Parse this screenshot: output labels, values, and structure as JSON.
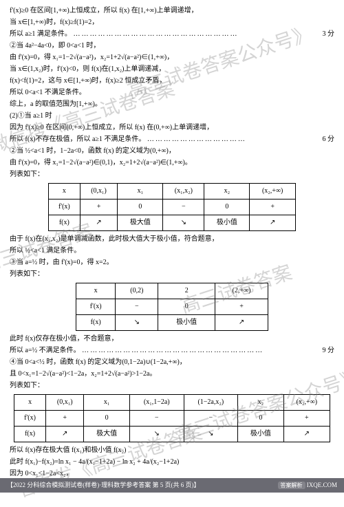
{
  "lines": {
    "l1": "f'(x)≥0 在区间[1,+∞)上恒成立，所以 f(x) 在[1,+∞)上单调递增，",
    "l2": "当 x∈[1,+∞)时，f(x)≥f(1)=2，",
    "l3": "所以 a≥1 满足条件。",
    "s3": "3 分",
    "l4": "②当 4a²−4a<0，即 0<a<1 时，",
    "l5": "由 f'(x)=0，得 x₁=1−2√(a−a²)，x₂=1+2√(a−a²)∈(1,+∞)，",
    "l6": "当 x∈(1,x₂)时，f'(x)<0，则 f(x)在(1,x₂)上单调递减，",
    "l7": "f(x)<f(1)=2，这与 x∈[1,+∞)时，f(x)≥2 恒成立矛盾，",
    "l8": "所以 0<a<1 不满足条件。",
    "l9": "综上，a 的取值范围为[1,+∞)。",
    "l10": "(2)①当 a≥1 时",
    "l11": "因为 f'(x)≥0 在区间(0,+∞)上恒成立，所以 f(x) 在(0,+∞)上单调递增，",
    "l12": "所以 f(x)不存在极值，所以 a≥1 不满足条件。",
    "s12": "6 分",
    "l13": "②当 ½<a<1 时，1−2a<0，函数 f(x) 的定义域为(0,+∞)，",
    "l14": "由 f'(x)=0，得 x₁=1−2√(a−a²)∈(0,1)，x₂=1+2√(a−a²)∈(1,+∞)。",
    "l15": "列表如下：",
    "l16": "由于 f(x)在(x₁,x₂)是单调减函数，此时极大值大于极小值，符合题意，",
    "l17": "所以 ½<a<1 满足条件。",
    "l18": "③当 a=½ 时，由 f'(x)=0，得 x=2。",
    "l19": "列表如下：",
    "l20": "此时 f(x)仅存在极小值，不合题意，",
    "l21": "所以 a=½ 不满足条件。",
    "s21": "9 分",
    "l22": "④当 0<a<½ 时，函数 f(x) 的定义域为(0,1−2a)∪(1−2a,+∞)，",
    "l23": "且 0<x₁=1−2√(a−a²)<1−2a，x₂=1+2√(a−a²)>1−2a。",
    "l24": "列表如下：",
    "l25": "所以 f(x)存在极大值 f(x₁)和极小值 f(x₂)",
    "l26": "此时 f(x₁)−f(x₂)=ln x₁ − 4a/(x₁−1+2a) − ln x₂ + 4a/(x₂−1+2a)",
    "l27": "因为 0<x₁<1−2a<x₂，"
  },
  "table1": {
    "h": [
      "x",
      "(0,x₁)",
      "x₁",
      "(x₁,x₂)",
      "x₂",
      "(x₂,+∞)"
    ],
    "r1": [
      "f'(x)",
      "+",
      "0",
      "−",
      "0",
      "+"
    ],
    "r2": [
      "f(x)",
      "↗",
      "极大值",
      "↘",
      "极小值",
      "↗"
    ]
  },
  "table2": {
    "h": [
      "x",
      "(0,2)",
      "2",
      "(2,+∞)"
    ],
    "r1": [
      "f'(x)",
      "−",
      "0",
      "+"
    ],
    "r2": [
      "f(x)",
      "↘",
      "极小值",
      "↗"
    ]
  },
  "table3": {
    "h": [
      "x",
      "(0,x₁)",
      "x₁",
      "(x₁,1−2a)",
      "(1−2a,x₂)",
      "x₂",
      "(x₂,+∞)"
    ],
    "r1": [
      "f'(x)",
      "+",
      "0",
      "−",
      "−",
      "0",
      "+"
    ],
    "r2": [
      "f(x)",
      "↗",
      "极大值",
      "↘",
      "↘",
      "极小值",
      "↗"
    ]
  },
  "watermarks": {
    "w1": "高三试卷答案公众号》",
    "w2": "微信搜《高三试卷答案",
    "w3": "高三试卷答案",
    "w4": "高三试卷答案",
    "w5": "高三试卷答案公众号》",
    "w6": "答案发《高三试卷答案"
  },
  "footer": {
    "left": "【2022 分科综合模拟测试卷(样卷)·理科数学参考答案  第 5 页(共 6 页)】",
    "badge": "答案解析",
    "right": "IXQE.COM"
  }
}
